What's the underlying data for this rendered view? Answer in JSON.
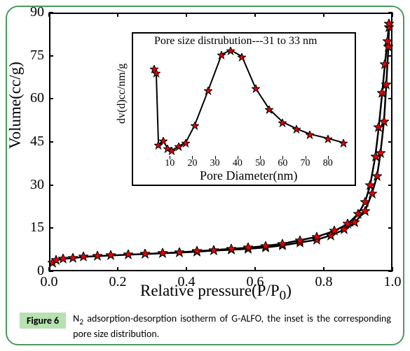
{
  "outer_border_color": "#4a9b5e",
  "main_chart": {
    "type": "scatter-line",
    "xlabel": "Relative pressure (P/P₀)",
    "ylabel": "Volume(cc/g)",
    "xlabel_raw": "Relative pressure(P/P",
    "xlabel_sub": "0",
    "xlabel_tail": ")",
    "xlim": [
      0.0,
      1.0
    ],
    "ylim": [
      0,
      90
    ],
    "xtick_step": 0.2,
    "ytick_step": 15,
    "xticks": [
      "0.0",
      "0.2",
      "0.4",
      "0.6",
      "0.8",
      "1.0"
    ],
    "yticks": [
      "0",
      "15",
      "30",
      "45",
      "60",
      "75",
      "90"
    ],
    "label_fontsize": 23,
    "tick_fontsize": 20,
    "background_color": "#ffffff",
    "line_color": "#000000",
    "line_width": 2,
    "marker": "star",
    "marker_color": "#e60000",
    "marker_edge_color": "#000000",
    "marker_size": 14,
    "adsorption": [
      [
        0.01,
        3.0
      ],
      [
        0.02,
        3.8
      ],
      [
        0.04,
        4.3
      ],
      [
        0.07,
        4.6
      ],
      [
        0.1,
        5.0
      ],
      [
        0.14,
        5.3
      ],
      [
        0.18,
        5.5
      ],
      [
        0.23,
        5.8
      ],
      [
        0.28,
        6.0
      ],
      [
        0.33,
        6.3
      ],
      [
        0.38,
        6.5
      ],
      [
        0.43,
        6.8
      ],
      [
        0.48,
        7.2
      ],
      [
        0.53,
        7.5
      ],
      [
        0.58,
        7.8
      ],
      [
        0.63,
        8.3
      ],
      [
        0.68,
        9.0
      ],
      [
        0.73,
        10.0
      ],
      [
        0.78,
        11.0
      ],
      [
        0.82,
        12.5
      ],
      [
        0.86,
        14.5
      ],
      [
        0.89,
        17.0
      ],
      [
        0.92,
        21.0
      ],
      [
        0.94,
        27.0
      ],
      [
        0.955,
        33.0
      ],
      [
        0.965,
        41.0
      ],
      [
        0.975,
        52.0
      ],
      [
        0.982,
        65.0
      ],
      [
        0.988,
        78.0
      ],
      [
        0.99,
        85.0
      ]
    ],
    "desorption": [
      [
        0.99,
        86.0
      ],
      [
        0.985,
        80.0
      ],
      [
        0.978,
        72.0
      ],
      [
        0.97,
        62.0
      ],
      [
        0.96,
        50.0
      ],
      [
        0.95,
        40.0
      ],
      [
        0.935,
        30.0
      ],
      [
        0.92,
        24.0
      ],
      [
        0.9,
        20.0
      ],
      [
        0.87,
        16.5
      ],
      [
        0.83,
        14.0
      ],
      [
        0.78,
        12.0
      ],
      [
        0.73,
        10.8
      ],
      [
        0.68,
        9.6
      ],
      [
        0.63,
        8.8
      ],
      [
        0.58,
        8.2
      ],
      [
        0.53,
        7.8
      ],
      [
        0.48,
        7.4
      ],
      [
        0.43,
        7.0
      ],
      [
        0.38,
        6.6
      ],
      [
        0.33,
        6.3
      ],
      [
        0.28,
        6.0
      ]
    ]
  },
  "inset_chart": {
    "type": "scatter-line",
    "title": "Pore size distrubution---31 to 33 nm",
    "xlabel": "Pore Diameter(nm)",
    "ylabel": "dv(d)cc/nm/g",
    "xlim": [
      0,
      90
    ],
    "xticks": [
      "10",
      "20",
      "30",
      "40",
      "50",
      "60",
      "70",
      "80"
    ],
    "xtick_step": 10,
    "label_fontsize": 16,
    "tick_fontsize": 14,
    "line_color": "#000000",
    "line_width": 2,
    "marker": "star",
    "marker_color": "#e60000",
    "marker_edge_color": "#000000",
    "marker_size": 12,
    "points": [
      [
        3,
        0.82
      ],
      [
        4,
        0.78
      ],
      [
        5,
        0.12
      ],
      [
        7,
        0.16
      ],
      [
        9,
        0.09
      ],
      [
        11,
        0.07
      ],
      [
        14,
        0.11
      ],
      [
        17,
        0.14
      ],
      [
        21,
        0.3
      ],
      [
        27,
        0.62
      ],
      [
        33,
        0.95
      ],
      [
        37,
        0.99
      ],
      [
        42,
        0.93
      ],
      [
        48,
        0.64
      ],
      [
        54,
        0.45
      ],
      [
        60,
        0.33
      ],
      [
        66,
        0.27
      ],
      [
        72,
        0.22
      ],
      [
        80,
        0.18
      ],
      [
        87,
        0.14
      ]
    ]
  },
  "caption": {
    "badge": "Figure 6",
    "badge_bg": "#b8e0b0",
    "text_prefix": "N",
    "text_sub": "2",
    "text_rest": " adsorption-desorption isotherm of G-ALFO, the inset is the corresponding pore size distribution.",
    "fontsize": 14
  }
}
